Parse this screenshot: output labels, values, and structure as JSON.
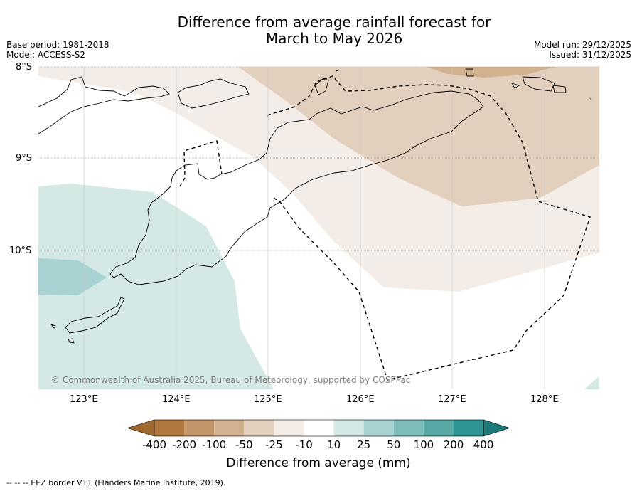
{
  "title_line1": "Difference from average rainfall forecast for",
  "title_line2": "March to May 2026",
  "base_period": "Base period: 1981-2018",
  "model": "Model: ACCESS-S2",
  "model_run": "Model run: 29/12/2025",
  "issued": "Issued: 31/12/2025",
  "copyright": "© Commonwealth of Australia 2025, Bureau of Meteorology, supported by COSPPac",
  "lat_labels": [
    "8°S",
    "9°S",
    "10°S"
  ],
  "lon_labels": [
    "123°E",
    "124°E",
    "125°E",
    "126°E",
    "127°E",
    "128°E"
  ],
  "colorbar": {
    "title": "Difference from average (mm)",
    "tick_labels": [
      "-400",
      "-200",
      "-100",
      "-50",
      "-25",
      "-10",
      "10",
      "25",
      "50",
      "100",
      "200",
      "400"
    ],
    "colors": [
      "#a0692f",
      "#b0773f",
      "#c1946a",
      "#d2b18e",
      "#e3cfbd",
      "#f4ece7",
      "#ffffff",
      "#d4e8e6",
      "#a7d2d1",
      "#7dbdba",
      "#58a9a6",
      "#2e9594",
      "#1d7a78"
    ]
  },
  "footnote": "--  --  -- EEZ border V11 (Flanders Marine Institute, 2019)."
}
